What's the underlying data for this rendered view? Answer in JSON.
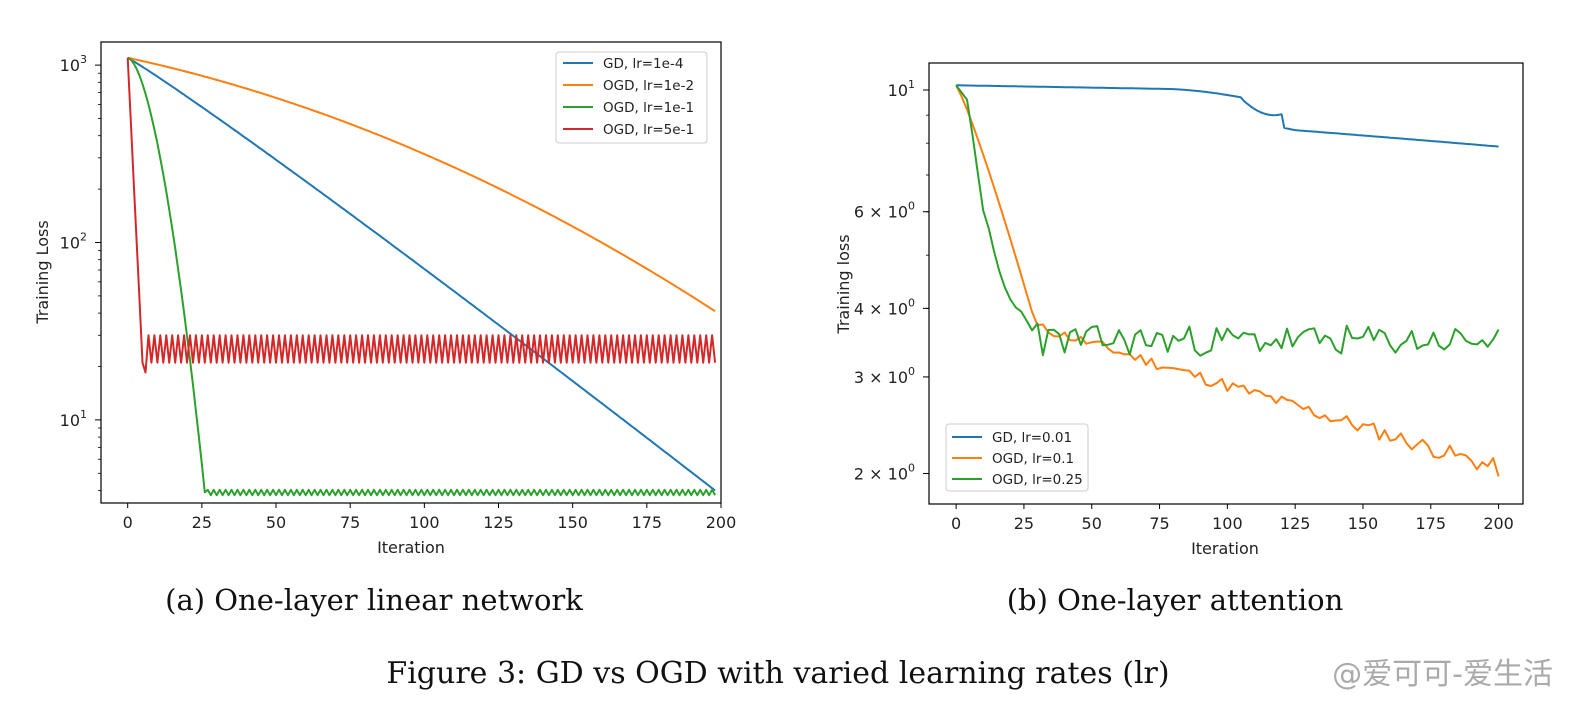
{
  "figure_caption": "Figure 3: GD vs OGD with varied learning rates (lr)",
  "watermark": "@爱可可-爱生活",
  "chart_data": [
    {
      "type": "line",
      "caption": "(a) One-layer linear network",
      "xlabel": "Iteration",
      "ylabel": "Training Loss",
      "yscale": "log",
      "xlim": [
        -9,
        200
      ],
      "ylim": [
        3.4,
        1350
      ],
      "xticks": [
        0,
        25,
        50,
        75,
        100,
        125,
        150,
        175,
        200
      ],
      "yticks": [
        {
          "v": 10,
          "base": "10",
          "exp": "1"
        },
        {
          "v": 100,
          "base": "10",
          "exp": "2"
        },
        {
          "v": 1000,
          "base": "10",
          "exp": "3"
        }
      ],
      "legend_position": "upper-right",
      "series": [
        {
          "name": "GD, lr=1e-4",
          "color": "#1f77b4",
          "gen": "gd_a"
        },
        {
          "name": "OGD, lr=1e-2",
          "color": "#ff7f0e",
          "gen": "ogd_slow_a"
        },
        {
          "name": "OGD, lr=1e-1",
          "color": "#2ca02c",
          "gen": "ogd_mid_a"
        },
        {
          "name": "OGD, lr=5e-1",
          "color": "#d62728",
          "gen": "ogd_fast_a"
        }
      ]
    },
    {
      "type": "line",
      "caption": "(b) One-layer attention",
      "xlabel": "Iteration",
      "ylabel": "Training loss",
      "yscale": "log",
      "xlim": [
        -10,
        209
      ],
      "ylim": [
        1.76,
        11.2
      ],
      "xticks": [
        0,
        25,
        50,
        75,
        100,
        125,
        150,
        175,
        200
      ],
      "yticks": [
        {
          "v": 2,
          "base": "2 × 10",
          "exp": "0"
        },
        {
          "v": 3,
          "base": "3 × 10",
          "exp": "0"
        },
        {
          "v": 4,
          "base": "4 × 10",
          "exp": "0"
        },
        {
          "v": 6,
          "base": "6 × 10",
          "exp": "0"
        },
        {
          "v": 10,
          "base": "10",
          "exp": "1"
        }
      ],
      "legend_position": "lower-left",
      "series": [
        {
          "name": "GD, lr=0.01",
          "color": "#1f77b4",
          "gen": "gd_b"
        },
        {
          "name": "OGD, lr=0.1",
          "color": "#ff7f0e",
          "gen": "ogd_b1"
        },
        {
          "name": "OGD, lr=0.25",
          "color": "#2ca02c",
          "gen": "ogd_b2"
        }
      ]
    }
  ]
}
